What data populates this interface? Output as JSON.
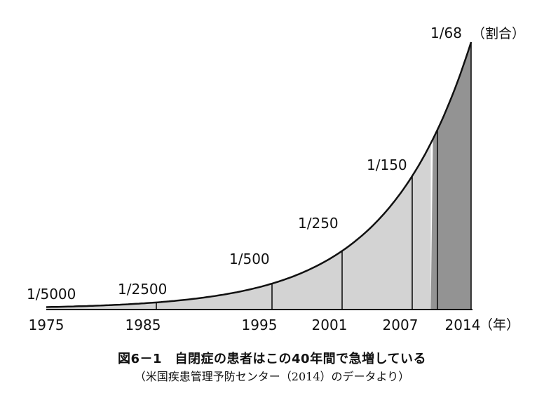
{
  "chart_data": {
    "type": "area",
    "title": "図6－1　自閉症の患者はこの40年間で急増している",
    "subtitle": "（米国疾患管理予防センター（2014）のデータより）",
    "x_unit_label": "（年）",
    "y_unit_label": "（割合）",
    "xlim": [
      1975,
      2014
    ],
    "x": [
      1975,
      1985,
      1995,
      2001,
      2007,
      2014
    ],
    "x_tick_labels": [
      "1975",
      "1985",
      "1995",
      "2001",
      "2007",
      "2014"
    ],
    "values": [
      0.0002,
      0.0004,
      0.002,
      0.004,
      0.006667,
      0.014706
    ],
    "data_labels": [
      "1/5000",
      "1/2500",
      "1/500",
      "1/250",
      "1/150",
      "1/68"
    ],
    "colors": {
      "area_light": "#d3d3d3",
      "area_dark": "#939393",
      "line": "#111111"
    }
  }
}
